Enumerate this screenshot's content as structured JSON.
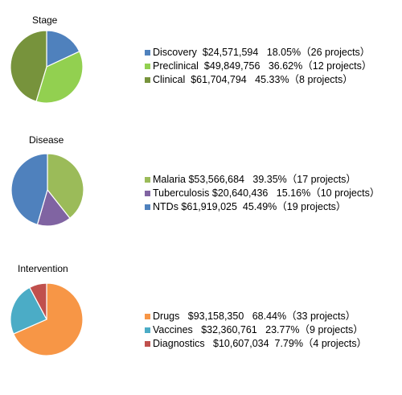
{
  "chart_data": [
    {
      "type": "pie",
      "title": "Stage",
      "slices": [
        {
          "label": "Discovery",
          "value": 24571594,
          "percent": 18.05,
          "color": "#4f81bd",
          "legend_text": "Discovery  $24,571,594   18.05%（26 projects）"
        },
        {
          "label": "Preclinical",
          "value": 49849756,
          "percent": 36.62,
          "color": "#92d050",
          "legend_text": "Preclinical  $49,849,756   36.62%（12 projects）"
        },
        {
          "label": "Clinical",
          "value": 61704794,
          "percent": 45.33,
          "color": "#77933c",
          "legend_text": "Clinical  $61,704,794   45.33%（8 projects）"
        }
      ]
    },
    {
      "type": "pie",
      "title": "Disease",
      "slices": [
        {
          "label": "Malaria",
          "value": 53566684,
          "percent": 39.35,
          "color": "#9bbb59",
          "legend_text": "Malaria $53,566,684   39.35%（17 projects）"
        },
        {
          "label": "Tuberculosis",
          "value": 20640436,
          "percent": 15.16,
          "color": "#8064a2",
          "legend_text": "Tuberculosis $20,640,436   15.16%（10 projects）"
        },
        {
          "label": "NTDs",
          "value": 61919025,
          "percent": 45.49,
          "color": "#4f81bd",
          "legend_text": "NTDs $61,919,025  45.49%（19 projects）"
        }
      ]
    },
    {
      "type": "pie",
      "title": "Intervention",
      "slices": [
        {
          "label": "Drugs",
          "value": 93158350,
          "percent": 68.44,
          "color": "#f79646",
          "legend_text": "Drugs   $93,158,350   68.44%（33 projects）"
        },
        {
          "label": "Vaccines",
          "value": 32360761,
          "percent": 23.77,
          "color": "#4bacc6",
          "legend_text": "Vaccines   $32,360,761   23.77%（9 projects）"
        },
        {
          "label": "Diagnostics",
          "value": 10607034,
          "percent": 7.79,
          "color": "#c0504d",
          "legend_text": "Diagnostics   $10,607,034  7.79%（4 projects）"
        }
      ]
    }
  ]
}
